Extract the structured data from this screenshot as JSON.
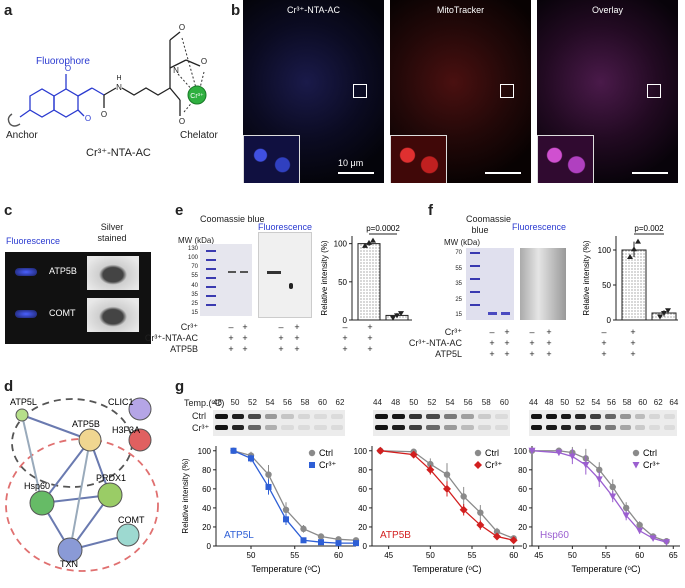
{
  "panels": {
    "a": "a",
    "b": "b",
    "c": "c",
    "d": "d",
    "e": "e",
    "f": "f",
    "g": "g"
  },
  "panel_a": {
    "fluorophore": "Fluorophore",
    "anchor": "Anchor",
    "chelator": "Chelator",
    "compound_name": "Cr³⁺-NTA-AC",
    "chem_labels": {
      "o": "O",
      "n": "N",
      "h": "H",
      "cr": "Cr³⁺"
    }
  },
  "panel_b": {
    "images": [
      {
        "title": "Cr³⁺-NTA-AC",
        "color": "#3a4ad0"
      },
      {
        "title": "MitoTracker",
        "color": "#d01818"
      },
      {
        "title": "Overlay",
        "color": "#c040c0"
      }
    ],
    "scale_label": "10 μm"
  },
  "panel_c": {
    "header_fluorescence": "Fluorescence",
    "header_silver": "Silver stained",
    "rows": [
      "ATP5B",
      "COMT"
    ]
  },
  "panel_e": {
    "header_coomassie": "Coomassie blue",
    "header_fluorescence": "Fluorescence",
    "mw_unit": "MW (kDa)",
    "mw_markers": [
      "130",
      "100",
      "70",
      "55",
      "40",
      "35",
      "25",
      "15"
    ],
    "row_labels": [
      "Cr³⁺",
      "Cr³⁺-NTA-AC",
      "ATP5B"
    ],
    "lane_signs": [
      [
        "–",
        "+",
        "–",
        "+"
      ],
      [
        "+",
        "+",
        "+",
        "+"
      ],
      [
        "+",
        "+",
        "+",
        "+"
      ]
    ],
    "bar_signs": [
      [
        "–",
        "+"
      ],
      [
        "+",
        "+"
      ],
      [
        "+",
        "+"
      ]
    ],
    "pvalue": "p=0.0002",
    "ylabel": "Relative intensity (%)",
    "yticks": [
      "0",
      "50",
      "100"
    ]
  },
  "panel_f": {
    "header_coomassie": "Coomassie blue",
    "header_fluorescence": "Fluorescence",
    "mw_unit": "MW (kDa)",
    "mw_markers": [
      "70",
      "55",
      "35",
      "25",
      "15"
    ],
    "row_labels": [
      "Cr³⁺",
      "Cr³⁺-NTA-AC",
      "ATP5L"
    ],
    "lane_signs": [
      [
        "–",
        "+",
        "–",
        "+"
      ],
      [
        "+",
        "+",
        "+",
        "+"
      ],
      [
        "+",
        "+",
        "+",
        "+"
      ]
    ],
    "bar_signs": [
      [
        "–",
        "+"
      ],
      [
        "+",
        "+"
      ],
      [
        "+",
        "+"
      ]
    ],
    "pvalue": "p=0.002",
    "ylabel": "Relative intensity (%)",
    "yticks": [
      "0",
      "50",
      "100"
    ]
  },
  "panel_d": {
    "nodes": [
      "ATP5L",
      "ATP5B",
      "CLIC1",
      "H3F3A",
      "Hsp60",
      "PRDX1",
      "COMT",
      "TXN"
    ]
  },
  "panel_g": {
    "temp_prefix": "Temp.(ᵒC)",
    "blot_rows": [
      "Ctrl",
      "Cr³⁺"
    ],
    "blot_temps": [
      [
        "48",
        "50",
        "52",
        "54",
        "56",
        "58",
        "60",
        "62"
      ],
      [
        "44",
        "48",
        "50",
        "52",
        "54",
        "56",
        "58",
        "60"
      ],
      [
        "44",
        "48",
        "50",
        "52",
        "54",
        "56",
        "58",
        "60",
        "62",
        "64"
      ]
    ],
    "xlabel": "Temperature (ᵒC)",
    "ylabel": "Relative intensity (%)"
  },
  "chart_data": [
    {
      "type": "bar",
      "panel": "e",
      "categories": [
        "Ctrl",
        "Cr³⁺"
      ],
      "values": [
        100,
        6
      ],
      "points": [
        [
          97,
          101,
          104
        ],
        [
          3,
          6,
          9
        ]
      ],
      "ylabel": "Relative intensity (%)",
      "ylim": [
        0,
        110
      ],
      "annotation": "p=0.0002"
    },
    {
      "type": "bar",
      "panel": "f",
      "categories": [
        "Ctrl",
        "Cr³⁺"
      ],
      "values": [
        100,
        10
      ],
      "points": [
        [
          90,
          101,
          112
        ],
        [
          5,
          10,
          14
        ]
      ],
      "ylabel": "Relative intensity (%)",
      "ylim": [
        0,
        120
      ],
      "annotation": "p=0.002"
    },
    {
      "type": "scatter",
      "panel": "g",
      "label": "ATP5L",
      "xlim": [
        46,
        62
      ],
      "ylim": [
        0,
        105
      ],
      "xticks": [
        50,
        55,
        60
      ],
      "yticks": [
        0,
        20,
        40,
        60,
        80,
        100
      ],
      "xlabel": "Temperature (ᵒC)",
      "ylabel": "Relative intensity (%)",
      "series": [
        {
          "name": "Ctrl",
          "color": "#8a8a8a",
          "marker": "circle",
          "x": [
            48,
            50,
            52,
            54,
            56,
            58,
            60,
            62
          ],
          "y": [
            100,
            95,
            75,
            38,
            18,
            10,
            7,
            6
          ],
          "err": [
            0,
            4,
            10,
            8,
            4,
            3,
            2,
            2
          ]
        },
        {
          "name": "Cr³⁺",
          "color": "#2e5fd6",
          "marker": "square",
          "x": [
            48,
            50,
            52,
            54,
            56,
            58,
            60,
            62
          ],
          "y": [
            100,
            92,
            62,
            28,
            6,
            4,
            3,
            3
          ],
          "err": [
            0,
            4,
            8,
            6,
            2,
            1,
            1,
            1
          ]
        }
      ]
    },
    {
      "type": "scatter",
      "panel": "g",
      "label": "ATP5B",
      "xlim": [
        43,
        61
      ],
      "ylim": [
        0,
        105
      ],
      "xticks": [
        45,
        50,
        55,
        60
      ],
      "yticks": [
        0,
        20,
        40,
        60,
        80,
        100
      ],
      "xlabel": "Temperature (ᵒC)",
      "ylabel": "",
      "series": [
        {
          "name": "Ctrl",
          "color": "#8a8a8a",
          "marker": "circle",
          "x": [
            44,
            48,
            50,
            52,
            54,
            56,
            58,
            60
          ],
          "y": [
            100,
            99,
            86,
            75,
            52,
            35,
            15,
            8
          ],
          "err": [
            0,
            2,
            6,
            12,
            10,
            8,
            4,
            3
          ]
        },
        {
          "name": "Cr³⁺",
          "color": "#d21f1f",
          "marker": "diamond",
          "x": [
            44,
            48,
            50,
            52,
            54,
            56,
            58,
            60
          ],
          "y": [
            100,
            96,
            80,
            60,
            38,
            22,
            10,
            6
          ],
          "err": [
            0,
            2,
            5,
            8,
            6,
            5,
            3,
            2
          ]
        }
      ]
    },
    {
      "type": "scatter",
      "panel": "g",
      "label": "Hsp60",
      "xlim": [
        44,
        66
      ],
      "ylim": [
        0,
        105
      ],
      "xticks": [
        45,
        50,
        55,
        60,
        65
      ],
      "yticks": [
        0,
        20,
        40,
        60,
        80,
        100
      ],
      "xlabel": "Temperature (ᵒC)",
      "ylabel": "",
      "series": [
        {
          "name": "Ctrl",
          "color": "#8a8a8a",
          "marker": "circle",
          "x": [
            44,
            48,
            50,
            52,
            54,
            56,
            58,
            60,
            62,
            64
          ],
          "y": [
            100,
            100,
            98,
            92,
            80,
            62,
            40,
            22,
            10,
            5
          ],
          "err": [
            0,
            2,
            6,
            10,
            8,
            8,
            6,
            4,
            2,
            1
          ]
        },
        {
          "name": "Cr³⁺",
          "color": "#9b5fd0",
          "marker": "triangle-down",
          "x": [
            44,
            48,
            50,
            52,
            54,
            56,
            58,
            60,
            62,
            64
          ],
          "y": [
            100,
            98,
            94,
            85,
            70,
            52,
            32,
            16,
            8,
            4
          ],
          "err": [
            0,
            3,
            8,
            10,
            8,
            6,
            5,
            3,
            2,
            1
          ]
        }
      ]
    }
  ]
}
